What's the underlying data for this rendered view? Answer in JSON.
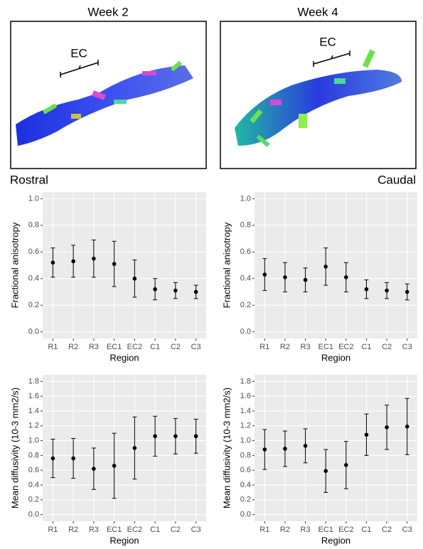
{
  "images": [
    {
      "title": "Week 2",
      "label": "EC"
    },
    {
      "title": "Week 4",
      "label": "EC"
    }
  ],
  "orientation": {
    "left": "Rostral",
    "right": "Caudal"
  },
  "chart_data": [
    {
      "type": "errorbar",
      "xlabel": "Region",
      "ylabel": "Fractional anisotropy",
      "categories": [
        "R1",
        "R2",
        "R3",
        "EC1",
        "EC2",
        "C1",
        "C2",
        "C3"
      ],
      "values": [
        0.52,
        0.53,
        0.55,
        0.51,
        0.4,
        0.32,
        0.31,
        0.3
      ],
      "errors": [
        0.11,
        0.12,
        0.14,
        0.17,
        0.14,
        0.08,
        0.06,
        0.05
      ],
      "ylim": [
        -0.05,
        1.05
      ],
      "yticks": [
        {
          "value": 0,
          "label": "0.0"
        },
        0.2,
        0.4,
        0.6,
        0.8,
        {
          "value": 1,
          "label": "1.0"
        }
      ],
      "grid": true,
      "color": "#000000"
    },
    {
      "type": "errorbar",
      "xlabel": "Region",
      "ylabel": "Fractional anisotropy",
      "categories": [
        "R1",
        "R2",
        "R3",
        "EC1",
        "EC2",
        "C1",
        "C2",
        "C3"
      ],
      "values": [
        0.43,
        0.41,
        0.39,
        0.49,
        0.41,
        0.32,
        0.31,
        0.3
      ],
      "errors": [
        0.12,
        0.11,
        0.09,
        0.14,
        0.11,
        0.07,
        0.06,
        0.06
      ],
      "ylim": [
        -0.05,
        1.05
      ],
      "yticks": [
        {
          "value": 0,
          "label": "0.0"
        },
        0.2,
        0.4,
        0.6,
        0.8,
        {
          "value": 1,
          "label": "1.0"
        }
      ],
      "grid": true,
      "color": "#000000"
    },
    {
      "type": "errorbar",
      "xlabel": "Region",
      "ylabel": "Mean diffusivity (10-3 mm2/s)",
      "categories": [
        "R1",
        "R2",
        "R3",
        "EC1",
        "EC2",
        "C1",
        "C2",
        "C3"
      ],
      "values": [
        0.76,
        0.76,
        0.62,
        0.66,
        0.9,
        1.06,
        1.06,
        1.06
      ],
      "errors": [
        0.26,
        0.27,
        0.28,
        0.44,
        0.42,
        0.27,
        0.24,
        0.23
      ],
      "ylim": [
        -0.09,
        1.89
      ],
      "yticks": [
        {
          "value": 0,
          "label": "0.0"
        },
        0.2,
        0.4,
        0.6,
        0.8,
        {
          "value": 1,
          "label": "1.0"
        },
        1.2,
        1.4,
        1.6,
        1.8
      ],
      "grid": true,
      "color": "#000000"
    },
    {
      "type": "errorbar",
      "xlabel": "Region",
      "ylabel": "Mean diffusivity (10-3 mm2/s)",
      "categories": [
        "R1",
        "R2",
        "R3",
        "EC1",
        "EC2",
        "C1",
        "C2",
        "C3"
      ],
      "values": [
        0.88,
        0.89,
        0.93,
        0.59,
        0.67,
        1.08,
        1.18,
        1.19
      ],
      "errors": [
        0.27,
        0.24,
        0.23,
        0.29,
        0.32,
        0.28,
        0.3,
        0.38
      ],
      "ylim": [
        -0.09,
        1.89
      ],
      "yticks": [
        {
          "value": 0,
          "label": "0.0"
        },
        0.2,
        0.4,
        0.6,
        0.8,
        {
          "value": 1,
          "label": "1.0"
        },
        1.2,
        1.4,
        1.6,
        1.8
      ],
      "grid": true,
      "color": "#000000"
    }
  ]
}
